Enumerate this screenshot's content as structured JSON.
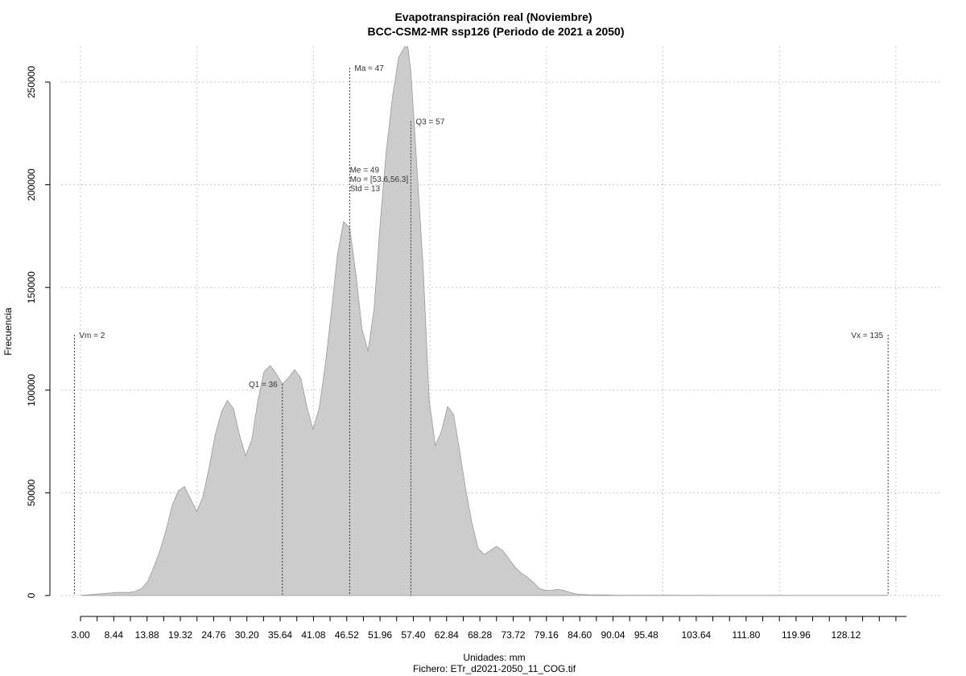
{
  "chart_data": {
    "type": "area",
    "title": "Evapotranspiración real (Noviembre)",
    "subtitle": "BCC-CSM2-MR ssp126 (Periodo de 2021 a 2050)",
    "xlabel": "Unidades: mm",
    "xlabel2": "Fichero: ETr_d2021-2050_11_COG.tif",
    "ylabel": "Frecuencia",
    "xlim": [
      3.0,
      138
    ],
    "ylim": [
      0,
      265000
    ],
    "x_ticks": [
      "3.00",
      "8.44",
      "13.88",
      "19.32",
      "24.76",
      "30.20",
      "35.64",
      "41.08",
      "46.52",
      "51.96",
      "57.40",
      "62.84",
      "68.28",
      "73.72",
      "79.16",
      "84.60",
      "90.04",
      "95.48",
      "103.64",
      "111.80",
      "119.96",
      "128.12"
    ],
    "y_ticks": [
      0,
      50000,
      100000,
      150000,
      200000,
      250000
    ],
    "y_tick_labels": [
      "0",
      "50000",
      "100000",
      "150000",
      "200000",
      "250000"
    ],
    "grid": true,
    "x": [
      3,
      5,
      7,
      9,
      11,
      12,
      13,
      14,
      15,
      16,
      17,
      18,
      19,
      20,
      21,
      22,
      23,
      24,
      25,
      26,
      27,
      28,
      29,
      30,
      31,
      32,
      33,
      34,
      35,
      36,
      37,
      38,
      39,
      40,
      41,
      42,
      43,
      44,
      45,
      46,
      47,
      48,
      49,
      50,
      51,
      52,
      53,
      54,
      55,
      56,
      56.5,
      57,
      57.5,
      58,
      59,
      60,
      61,
      62,
      63,
      64,
      65,
      66,
      67,
      68,
      69,
      70,
      71,
      72,
      73,
      74,
      75,
      76,
      77,
      78,
      79,
      80,
      81,
      82,
      83,
      84,
      85,
      86,
      88,
      90,
      92,
      95,
      100,
      110,
      120,
      130,
      135
    ],
    "y": [
      0,
      500,
      1000,
      1500,
      1500,
      2000,
      3500,
      7000,
      14000,
      22000,
      32000,
      44000,
      51000,
      53000,
      47000,
      41000,
      48000,
      62000,
      78000,
      89000,
      95000,
      91000,
      78000,
      68000,
      76000,
      95000,
      109000,
      112000,
      108000,
      103000,
      106000,
      110000,
      106000,
      92000,
      81000,
      91000,
      112000,
      138000,
      166000,
      182000,
      179000,
      157000,
      130000,
      119000,
      140000,
      182000,
      217000,
      243000,
      262000,
      272000,
      272000,
      255000,
      232000,
      208000,
      160000,
      95000,
      73000,
      80000,
      92000,
      88000,
      70000,
      51000,
      35000,
      23000,
      20000,
      22000,
      24000,
      22000,
      18000,
      14000,
      11000,
      9000,
      6500,
      3500,
      2500,
      2500,
      3000,
      2500,
      1500,
      800,
      500,
      400,
      300,
      200,
      150,
      100,
      100,
      80,
      80,
      80,
      80
    ],
    "vlines": [
      {
        "x": 2,
        "y": 127000,
        "label": "Vm = 2",
        "label_side": "right"
      },
      {
        "x": 36,
        "y": 103000,
        "label": "Q1 = 36",
        "label_side": "left"
      },
      {
        "x": 47,
        "y": 257000,
        "label": "Ma = 47",
        "label_side": "right"
      },
      {
        "x": 57,
        "y": 231000,
        "label": "Q3 = 57",
        "label_side": "right"
      },
      {
        "x": 135,
        "y": 127000,
        "label": "Vx = 135",
        "label_side": "left"
      }
    ],
    "stats_annotation": [
      "Me = 49",
      "Mo = [53.6,56.3]",
      "Std = 13"
    ],
    "stats_annotation_anchor": {
      "x": 49,
      "y": 206000
    }
  }
}
